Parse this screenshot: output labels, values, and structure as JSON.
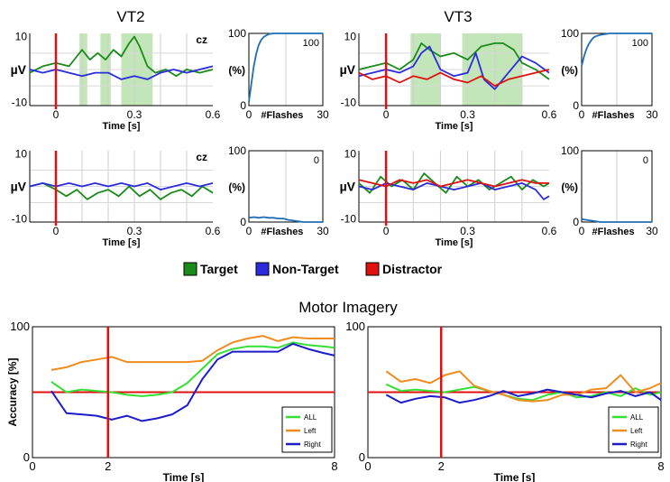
{
  "figure": {
    "titles": {
      "vt2": "VT2",
      "vt3": "VT3",
      "mi": "Motor Imagery"
    },
    "legend": [
      {
        "label": "Target",
        "color": "#1a8a1a"
      },
      {
        "label": "Non-Target",
        "color": "#2b2bdd"
      },
      {
        "label": "Distractor",
        "color": "#e01010"
      }
    ]
  },
  "chart_data": [
    {
      "id": "vt2-erp-top",
      "type": "line",
      "title": "",
      "channel": "CZ",
      "xlabel": "Time [s]",
      "ylabel": "µV",
      "xlim": [
        -0.1,
        0.6
      ],
      "ylim": [
        -11,
        11
      ],
      "xticks": [
        0,
        0.3,
        0.6
      ],
      "xticklabels": [
        "0",
        "0.3",
        "0.6"
      ],
      "yticks": [
        10,
        -10
      ],
      "yticklabels": [
        "10",
        "-10"
      ],
      "stimulus_line": 0,
      "shaded": [
        [
          0.09,
          0.12
        ],
        [
          0.17,
          0.21
        ],
        [
          0.25,
          0.37
        ]
      ],
      "series": [
        {
          "name": "Target",
          "color": "#1a8a1a",
          "x": [
            -0.1,
            -0.05,
            0,
            0.05,
            0.08,
            0.1,
            0.13,
            0.16,
            0.19,
            0.22,
            0.25,
            0.28,
            0.3,
            0.32,
            0.35,
            0.38,
            0.42,
            0.46,
            0.5,
            0.55,
            0.6
          ],
          "y": [
            -1,
            1,
            2,
            1,
            4,
            6,
            3,
            5,
            3,
            6,
            4,
            8,
            10,
            7,
            1,
            -1,
            0,
            -2,
            0,
            -1,
            0
          ]
        },
        {
          "name": "Non-Target",
          "color": "#2b2bdd",
          "x": [
            -0.1,
            -0.05,
            0,
            0.05,
            0.1,
            0.15,
            0.2,
            0.25,
            0.3,
            0.35,
            0.4,
            0.45,
            0.5,
            0.55,
            0.6
          ],
          "y": [
            0,
            -1,
            0,
            -1,
            -2,
            -1,
            -1,
            -3,
            -2,
            -3,
            -1,
            0,
            -1,
            0,
            1
          ]
        }
      ]
    },
    {
      "id": "vt2-acc-top",
      "type": "line",
      "title": "",
      "xlabel": "#Flashes",
      "ylabel": "(%)",
      "annotation": "100",
      "xlim": [
        0,
        30
      ],
      "ylim": [
        0,
        100
      ],
      "xticks": [
        0,
        30
      ],
      "xticklabels": [
        "0",
        "30"
      ],
      "yticks": [
        100,
        0
      ],
      "yticklabels": [
        "100",
        "0"
      ],
      "series": [
        {
          "name": "Accuracy",
          "color": "#1f6db5",
          "x": [
            0,
            1,
            2,
            3,
            4,
            5,
            6,
            7,
            8,
            10,
            12,
            15,
            20,
            25,
            30
          ],
          "y": [
            5,
            30,
            55,
            72,
            84,
            91,
            95,
            97,
            99,
            100,
            100,
            100,
            100,
            100,
            100
          ]
        }
      ]
    },
    {
      "id": "vt2-erp-bottom",
      "type": "line",
      "title": "",
      "channel": "CZ",
      "xlabel": "Time [s]",
      "ylabel": "µV",
      "xlim": [
        -0.1,
        0.6
      ],
      "ylim": [
        -11,
        11
      ],
      "xticks": [
        0,
        0.3,
        0.6
      ],
      "xticklabels": [
        "0",
        "0.3",
        "0.6"
      ],
      "yticks": [
        10,
        -10
      ],
      "yticklabels": [
        "10",
        "-10"
      ],
      "stimulus_line": 0,
      "series": [
        {
          "name": "Target",
          "color": "#1a8a1a",
          "x": [
            -0.1,
            -0.05,
            0,
            0.04,
            0.08,
            0.12,
            0.16,
            0.2,
            0.24,
            0.28,
            0.32,
            0.36,
            0.4,
            0.44,
            0.48,
            0.52,
            0.56,
            0.6
          ],
          "y": [
            0,
            1,
            -1,
            -3,
            -1,
            -4,
            -2,
            -1,
            -3,
            0,
            -3,
            -1,
            -4,
            -2,
            -1,
            -3,
            0,
            -2
          ]
        },
        {
          "name": "Non-Target",
          "color": "#2b2bdd",
          "x": [
            -0.1,
            -0.05,
            0,
            0.05,
            0.1,
            0.15,
            0.2,
            0.25,
            0.3,
            0.35,
            0.4,
            0.45,
            0.5,
            0.55,
            0.6
          ],
          "y": [
            0,
            1,
            0,
            1,
            0,
            1,
            0,
            1,
            0,
            1,
            -1,
            0,
            1,
            0,
            1
          ]
        }
      ]
    },
    {
      "id": "vt2-acc-bottom",
      "type": "line",
      "title": "",
      "xlabel": "#Flashes",
      "ylabel": "(%)",
      "annotation": "0",
      "xlim": [
        0,
        30
      ],
      "ylim": [
        0,
        100
      ],
      "xticks": [
        0,
        30
      ],
      "xticklabels": [
        "0",
        "30"
      ],
      "yticks": [
        100,
        0
      ],
      "yticklabels": [
        "100",
        "0"
      ],
      "series": [
        {
          "name": "Accuracy",
          "color": "#1f6db5",
          "x": [
            0,
            2,
            4,
            6,
            8,
            10,
            12,
            14,
            16,
            18,
            20,
            22,
            25,
            30
          ],
          "y": [
            6,
            7,
            6,
            7,
            6,
            6,
            5,
            5,
            3,
            2,
            1,
            0,
            0,
            0
          ]
        }
      ]
    },
    {
      "id": "vt3-erp-top",
      "type": "line",
      "title": "",
      "xlabel": "Time [s]",
      "ylabel": "µV",
      "xlim": [
        -0.1,
        0.6
      ],
      "ylim": [
        -11,
        11
      ],
      "xticks": [
        0,
        0.3,
        0.6
      ],
      "xticklabels": [
        "0",
        "0.3",
        "0.6"
      ],
      "yticks": [
        10,
        -10
      ],
      "yticklabels": [
        "10",
        "-10"
      ],
      "stimulus_line": 0,
      "shaded": [
        [
          0.09,
          0.2
        ],
        [
          0.28,
          0.5
        ]
      ],
      "series": [
        {
          "name": "Target",
          "color": "#1a8a1a",
          "x": [
            -0.1,
            -0.05,
            0,
            0.05,
            0.1,
            0.13,
            0.16,
            0.2,
            0.25,
            0.3,
            0.35,
            0.4,
            0.43,
            0.47,
            0.5,
            0.55,
            0.6
          ],
          "y": [
            0,
            1,
            2,
            0,
            3,
            8,
            6,
            4,
            5,
            3,
            7,
            8,
            8,
            6,
            2,
            0,
            -3
          ]
        },
        {
          "name": "Non-Target",
          "color": "#2b2bdd",
          "x": [
            -0.1,
            -0.05,
            0,
            0.05,
            0.1,
            0.13,
            0.16,
            0.2,
            0.25,
            0.3,
            0.33,
            0.36,
            0.4,
            0.45,
            0.5,
            0.55,
            0.6
          ],
          "y": [
            -2,
            -1,
            0,
            -1,
            1,
            5,
            7,
            0,
            -2,
            -1,
            5,
            -3,
            -6,
            -1,
            4,
            2,
            -1
          ]
        },
        {
          "name": "Distractor",
          "color": "#e01010",
          "x": [
            -0.1,
            -0.05,
            0,
            0.05,
            0.1,
            0.15,
            0.2,
            0.25,
            0.3,
            0.35,
            0.4,
            0.45,
            0.5,
            0.55,
            0.6
          ],
          "y": [
            -1,
            -3,
            -2,
            -4,
            -2,
            -3,
            -1,
            -3,
            -4,
            -2,
            -5,
            -3,
            -2,
            -1,
            0
          ]
        }
      ]
    },
    {
      "id": "vt3-acc-top",
      "type": "line",
      "title": "",
      "xlabel": "#Flashes",
      "ylabel": "(%)",
      "annotation": "100",
      "xlim": [
        0,
        30
      ],
      "ylim": [
        0,
        100
      ],
      "xticks": [
        0,
        30
      ],
      "xticklabels": [
        "0",
        "30"
      ],
      "yticks": [
        100,
        0
      ],
      "yticklabels": [
        "100",
        "0"
      ],
      "series": [
        {
          "name": "Accuracy",
          "color": "#1f6db5",
          "x": [
            0,
            1,
            2,
            3,
            4,
            5,
            6,
            8,
            10,
            12,
            15,
            20,
            25,
            30
          ],
          "y": [
            55,
            68,
            78,
            85,
            90,
            94,
            96,
            98,
            99,
            100,
            100,
            100,
            100,
            100
          ]
        }
      ]
    },
    {
      "id": "vt3-erp-bottom",
      "type": "line",
      "title": "",
      "xlabel": "Time [s]",
      "ylabel": "µV",
      "xlim": [
        -0.1,
        0.6
      ],
      "ylim": [
        -11,
        11
      ],
      "xticks": [
        0,
        0.3,
        0.6
      ],
      "xticklabels": [
        "0",
        "0.3",
        "0.6"
      ],
      "yticks": [
        10,
        -10
      ],
      "yticklabels": [
        "10",
        "-10"
      ],
      "stimulus_line": 0,
      "series": [
        {
          "name": "Target",
          "color": "#1a8a1a",
          "x": [
            -0.1,
            -0.06,
            -0.02,
            0.02,
            0.06,
            0.1,
            0.14,
            0.18,
            0.22,
            0.26,
            0.3,
            0.34,
            0.38,
            0.42,
            0.46,
            0.5,
            0.54,
            0.58,
            0.6
          ],
          "y": [
            1,
            -2,
            3,
            0,
            2,
            -1,
            4,
            1,
            -2,
            3,
            0,
            2,
            -1,
            1,
            3,
            -1,
            2,
            0,
            1
          ]
        },
        {
          "name": "Non-Target",
          "color": "#2b2bdd",
          "x": [
            -0.1,
            -0.05,
            0,
            0.05,
            0.1,
            0.15,
            0.2,
            0.25,
            0.3,
            0.35,
            0.4,
            0.45,
            0.5,
            0.55,
            0.58,
            0.6
          ],
          "y": [
            0,
            -1,
            1,
            0,
            -1,
            1,
            0,
            -1,
            0,
            1,
            -1,
            0,
            1,
            -1,
            -4,
            -3
          ]
        },
        {
          "name": "Distractor",
          "color": "#e01010",
          "x": [
            -0.1,
            -0.05,
            0,
            0.05,
            0.1,
            0.15,
            0.2,
            0.25,
            0.3,
            0.35,
            0.4,
            0.45,
            0.5,
            0.55,
            0.6
          ],
          "y": [
            2,
            1,
            0,
            2,
            1,
            2,
            0,
            1,
            2,
            1,
            0,
            1,
            2,
            1,
            1
          ]
        }
      ]
    },
    {
      "id": "vt3-acc-bottom",
      "type": "line",
      "title": "",
      "xlabel": "#Flashes",
      "ylabel": "(%)",
      "annotation": "0",
      "xlim": [
        0,
        30
      ],
      "ylim": [
        0,
        100
      ],
      "xticks": [
        0,
        30
      ],
      "xticklabels": [
        "0",
        "30"
      ],
      "yticks": [
        100,
        0
      ],
      "yticklabels": [
        "100",
        "0"
      ],
      "series": [
        {
          "name": "Accuracy",
          "color": "#1f6db5",
          "x": [
            0,
            2,
            4,
            6,
            8,
            10,
            15,
            20,
            25,
            30
          ],
          "y": [
            4,
            3,
            2,
            1,
            0,
            0,
            0,
            0,
            0,
            0
          ]
        }
      ]
    },
    {
      "id": "mi-left",
      "type": "line",
      "title": "",
      "xlabel": "Time [s]",
      "ylabel": "Accuracy [%]",
      "xlim": [
        0,
        8
      ],
      "ylim": [
        0,
        100
      ],
      "xticks": [
        0,
        2,
        8
      ],
      "xticklabels": [
        "0",
        "2",
        "8"
      ],
      "yticks": [
        100,
        0
      ],
      "yticklabels": [
        "100",
        "0"
      ],
      "vline": 2,
      "hline": 50,
      "legend_position": "bottom-right",
      "series": [
        {
          "name": "ALL",
          "color": "#33e033",
          "x": [
            0.5,
            0.9,
            1.3,
            1.7,
            2.1,
            2.5,
            2.9,
            3.3,
            3.7,
            4.1,
            4.5,
            4.9,
            5.3,
            5.7,
            6.1,
            6.5,
            6.9,
            7.3,
            7.7,
            8.0
          ],
          "y": [
            58,
            50,
            52,
            51,
            50,
            48,
            47,
            48,
            50,
            57,
            68,
            79,
            83,
            85,
            85,
            84,
            88,
            86,
            85,
            84
          ]
        },
        {
          "name": "Left",
          "color": "#f08c1e",
          "x": [
            0.5,
            0.9,
            1.3,
            1.7,
            2.1,
            2.5,
            2.9,
            3.3,
            3.7,
            4.1,
            4.5,
            4.9,
            5.3,
            5.7,
            6.1,
            6.5,
            6.9,
            7.3,
            7.7,
            8.0
          ],
          "y": [
            67,
            69,
            73,
            75,
            77,
            73,
            73,
            73,
            73,
            73,
            74,
            82,
            88,
            91,
            93,
            89,
            92,
            91,
            91,
            91
          ]
        },
        {
          "name": "Right",
          "color": "#1c1cc8",
          "x": [
            0.5,
            0.9,
            1.3,
            1.7,
            2.1,
            2.5,
            2.9,
            3.3,
            3.7,
            4.1,
            4.5,
            4.9,
            5.3,
            5.7,
            6.1,
            6.5,
            6.9,
            7.3,
            7.7,
            8.0
          ],
          "y": [
            51,
            34,
            33,
            32,
            29,
            32,
            28,
            30,
            33,
            40,
            60,
            75,
            81,
            81,
            81,
            81,
            87,
            83,
            80,
            78
          ]
        }
      ]
    },
    {
      "id": "mi-right",
      "type": "line",
      "title": "",
      "xlabel": "Time [s]",
      "ylabel": "",
      "xlim": [
        0,
        8
      ],
      "ylim": [
        0,
        100
      ],
      "xticks": [
        0,
        2,
        8
      ],
      "xticklabels": [
        "0",
        "2",
        "8"
      ],
      "yticks": [
        100,
        0
      ],
      "yticklabels": [
        "100",
        "0"
      ],
      "vline": 2,
      "hline": 50,
      "legend_position": "bottom-right",
      "series": [
        {
          "name": "ALL",
          "color": "#33e033",
          "x": [
            0.5,
            0.9,
            1.3,
            1.7,
            2.1,
            2.5,
            2.9,
            3.3,
            3.7,
            4.1,
            4.5,
            4.9,
            5.3,
            5.7,
            6.1,
            6.5,
            6.9,
            7.3,
            7.7,
            8.0
          ],
          "y": [
            56,
            51,
            52,
            51,
            50,
            52,
            54,
            51,
            48,
            45,
            44,
            48,
            50,
            46,
            47,
            50,
            47,
            53,
            48,
            50
          ]
        },
        {
          "name": "Left",
          "color": "#f08c1e",
          "x": [
            0.5,
            0.9,
            1.3,
            1.7,
            2.1,
            2.5,
            2.9,
            3.3,
            3.7,
            4.1,
            4.5,
            4.9,
            5.3,
            5.7,
            6.1,
            6.5,
            6.9,
            7.3,
            7.7,
            8.0
          ],
          "y": [
            66,
            58,
            60,
            57,
            63,
            66,
            55,
            51,
            48,
            44,
            43,
            44,
            48,
            48,
            52,
            53,
            63,
            50,
            53,
            57
          ]
        },
        {
          "name": "Right",
          "color": "#1c1cc8",
          "x": [
            0.5,
            0.9,
            1.3,
            1.7,
            2.1,
            2.5,
            2.9,
            3.3,
            3.7,
            4.1,
            4.5,
            4.9,
            5.3,
            5.7,
            6.1,
            6.5,
            6.9,
            7.3,
            7.7,
            8.0
          ],
          "y": [
            48,
            42,
            45,
            47,
            46,
            42,
            44,
            47,
            51,
            47,
            49,
            52,
            50,
            48,
            46,
            49,
            51,
            47,
            50,
            44
          ]
        }
      ]
    }
  ]
}
